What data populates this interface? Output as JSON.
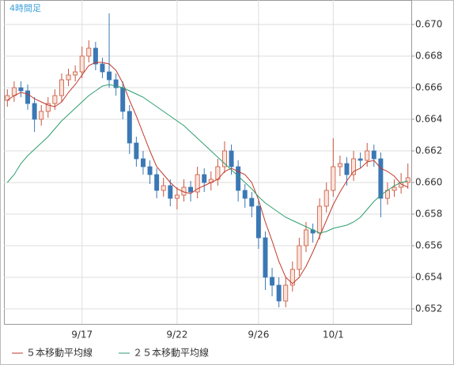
{
  "chart_data": {
    "type": "candlestick",
    "title": "4時間足",
    "categories": [
      null,
      null,
      null,
      null,
      null,
      null,
      null,
      null,
      null,
      null,
      null,
      "9/17",
      null,
      null,
      null,
      null,
      null,
      null,
      null,
      null,
      null,
      null,
      null,
      null,
      null,
      "9/22",
      null,
      null,
      null,
      null,
      null,
      null,
      null,
      null,
      null,
      null,
      null,
      "9/26",
      null,
      null,
      null,
      null,
      null,
      null,
      null,
      null,
      null,
      null,
      "10/1",
      null,
      null,
      null,
      null,
      null,
      null,
      null,
      null,
      null,
      null,
      null
    ],
    "open": [
      0.6652,
      0.6655,
      0.666,
      0.6658,
      0.665,
      0.664,
      0.6645,
      0.665,
      0.6655,
      0.6665,
      0.6668,
      0.667,
      0.668,
      0.6685,
      0.6675,
      0.667,
      0.6665,
      0.666,
      0.6645,
      0.6625,
      0.6615,
      0.661,
      0.6605,
      0.6595,
      0.6598,
      0.659,
      0.6592,
      0.6597,
      0.6594,
      0.6605,
      0.66,
      0.6602,
      0.661,
      0.662,
      0.661,
      0.6595,
      0.659,
      0.6585,
      0.6565,
      0.654,
      0.6535,
      0.6525,
      0.6535,
      0.6545,
      0.656,
      0.657,
      0.6568,
      0.6585,
      0.6595,
      0.661,
      0.6612,
      0.6605,
      0.6615,
      0.6614,
      0.662,
      0.6615,
      0.659,
      0.6595,
      0.6597,
      0.66
    ],
    "high": [
      0.6659,
      0.6664,
      0.6664,
      0.6662,
      0.6654,
      0.6649,
      0.6654,
      0.6659,
      0.6669,
      0.6672,
      0.6674,
      0.6686,
      0.669,
      0.6689,
      0.6679,
      0.6707,
      0.6669,
      0.6664,
      0.6649,
      0.6629,
      0.662,
      0.6614,
      0.6609,
      0.6603,
      0.6602,
      0.6597,
      0.6602,
      0.6601,
      0.661,
      0.6609,
      0.6607,
      0.6615,
      0.6626,
      0.6624,
      0.6614,
      0.6599,
      0.6594,
      0.6589,
      0.6569,
      0.6546,
      0.654,
      0.654,
      0.655,
      0.6565,
      0.6575,
      0.6574,
      0.659,
      0.66,
      0.6628,
      0.6617,
      0.6616,
      0.662,
      0.6619,
      0.6625,
      0.6624,
      0.6619,
      0.66,
      0.6602,
      0.6606,
      0.6612
    ],
    "low": [
      0.6648,
      0.6651,
      0.6654,
      0.6646,
      0.6632,
      0.6636,
      0.6641,
      0.6646,
      0.6651,
      0.6661,
      0.6664,
      0.6666,
      0.6676,
      0.6671,
      0.6666,
      0.666,
      0.6655,
      0.664,
      0.6618,
      0.661,
      0.6605,
      0.6599,
      0.659,
      0.6591,
      0.6585,
      0.6583,
      0.6588,
      0.6588,
      0.659,
      0.6594,
      0.6595,
      0.6598,
      0.6606,
      0.6605,
      0.6588,
      0.6584,
      0.6578,
      0.6558,
      0.6532,
      0.6528,
      0.6521,
      0.6521,
      0.6531,
      0.6541,
      0.6556,
      0.6562,
      0.6564,
      0.6581,
      0.6591,
      0.6604,
      0.6598,
      0.6601,
      0.6609,
      0.661,
      0.661,
      0.6578,
      0.6586,
      0.6591,
      0.6593,
      0.6596
    ],
    "close": [
      0.6655,
      0.666,
      0.6658,
      0.665,
      0.664,
      0.6645,
      0.665,
      0.6655,
      0.6665,
      0.6668,
      0.667,
      0.668,
      0.6685,
      0.6675,
      0.667,
      0.6665,
      0.666,
      0.6645,
      0.6625,
      0.6615,
      0.661,
      0.6605,
      0.6595,
      0.6598,
      0.659,
      0.6592,
      0.6597,
      0.6594,
      0.6605,
      0.66,
      0.6602,
      0.661,
      0.662,
      0.661,
      0.6595,
      0.659,
      0.6585,
      0.6565,
      0.654,
      0.6535,
      0.6525,
      0.6535,
      0.6545,
      0.656,
      0.657,
      0.6568,
      0.6585,
      0.6595,
      0.661,
      0.6612,
      0.6605,
      0.6615,
      0.6614,
      0.662,
      0.6615,
      0.659,
      0.6595,
      0.6597,
      0.66,
      0.6603
    ],
    "up_color": "#c8553d",
    "up_fill": "#fbe3da",
    "down_color": "#3b78b5",
    "series": [
      {
        "name": "５本移動平均線",
        "color": "#c0392b",
        "values": [
          0.6652,
          0.6655,
          0.6657,
          0.6656,
          0.6653,
          0.6651,
          0.6649,
          0.6648,
          0.6651,
          0.6657,
          0.6662,
          0.6668,
          0.6674,
          0.6676,
          0.6676,
          0.6675,
          0.6671,
          0.6663,
          0.6652,
          0.6642,
          0.6631,
          0.662,
          0.661,
          0.6605,
          0.66,
          0.6596,
          0.6594,
          0.6593,
          0.6596,
          0.6598,
          0.66,
          0.6602,
          0.6607,
          0.6609,
          0.6607,
          0.6605,
          0.66,
          0.6589,
          0.6575,
          0.6563,
          0.655,
          0.654,
          0.6536,
          0.654,
          0.6547,
          0.6556,
          0.6566,
          0.6576,
          0.6586,
          0.6594,
          0.6601,
          0.6607,
          0.6609,
          0.6613,
          0.6614,
          0.6609,
          0.6607,
          0.6604,
          0.6599,
          0.6597
        ]
      },
      {
        "name": "２５本移動平均線",
        "color": "#2e9e6e",
        "values": [
          0.66,
          0.6605,
          0.6612,
          0.6617,
          0.6621,
          0.6625,
          0.6629,
          0.6634,
          0.6639,
          0.6643,
          0.6647,
          0.6651,
          0.6655,
          0.6658,
          0.6661,
          0.6662,
          0.6661,
          0.666,
          0.6658,
          0.6656,
          0.6654,
          0.6651,
          0.6648,
          0.6645,
          0.6642,
          0.6639,
          0.6636,
          0.6632,
          0.6628,
          0.6624,
          0.662,
          0.6616,
          0.6612,
          0.6608,
          0.6604,
          0.66,
          0.6596,
          0.6591,
          0.6587,
          0.6584,
          0.6581,
          0.6578,
          0.6576,
          0.6574,
          0.6572,
          0.657,
          0.6568,
          0.6569,
          0.6571,
          0.6572,
          0.6573,
          0.6575,
          0.6578,
          0.6583,
          0.6588,
          0.6592,
          0.6595,
          0.6598,
          0.66,
          0.6601
        ]
      }
    ],
    "ylim": [
      0.65105,
      0.67155
    ],
    "yticks": [
      0.652,
      0.654,
      0.656,
      0.658,
      {
        "value": 0.66,
        "label": "0.660"
      },
      0.662,
      0.664,
      0.666,
      0.668,
      {
        "value": 0.67,
        "label": "0.670"
      }
    ],
    "grid": true
  }
}
